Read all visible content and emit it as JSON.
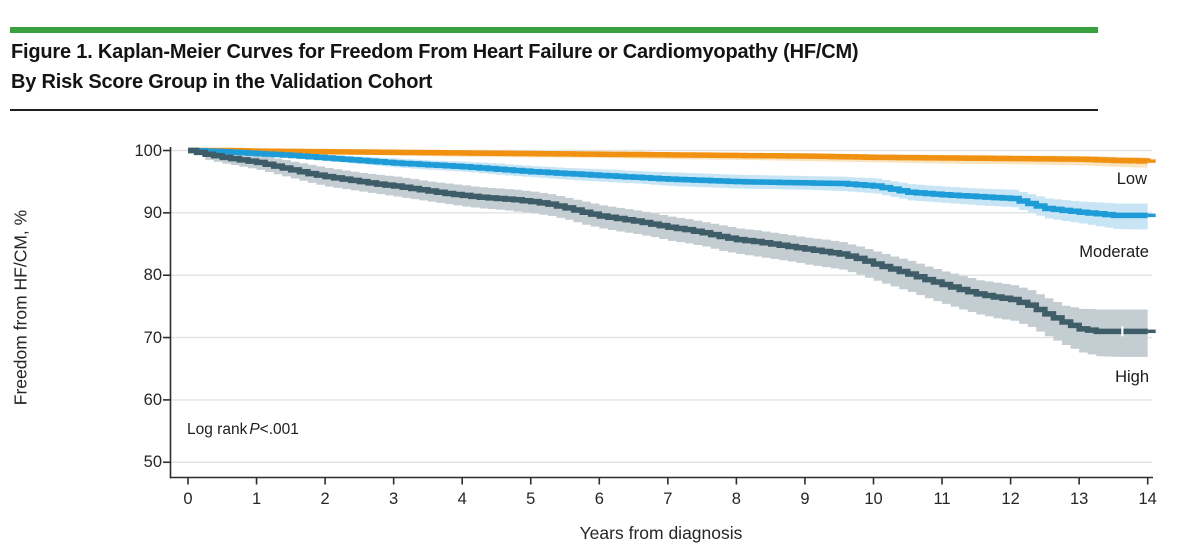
{
  "figure": {
    "title_line1": "Figure 1. Kaplan-Meier Curves for Freedom From Heart Failure or Cardiomyopathy (HF/CM)",
    "title_line2": "By Risk Score Group in the Validation Cohort",
    "accent_bar_color": "#38A03C"
  },
  "chart_data": {
    "type": "line",
    "subtype": "kaplan-meier-step",
    "xlabel": "Years from diagnosis",
    "ylabel": "Freedom from HF/CM, %",
    "xlim": [
      0,
      14
    ],
    "ylim": [
      50,
      100
    ],
    "xticks": [
      0,
      1,
      2,
      3,
      4,
      5,
      6,
      7,
      8,
      9,
      10,
      11,
      12,
      13,
      14
    ],
    "yticks": [
      50,
      60,
      70,
      80,
      90,
      100
    ],
    "grid": true,
    "gridline_color": "#e3e3e3",
    "axis_color": "#2d2d2d",
    "annotation": {
      "prefix": "Log rank",
      "p": "P",
      "suffix": "<.001"
    },
    "legend_position": "right-of-curves",
    "series": [
      {
        "name": "Low",
        "color": "#F19111",
        "ci_color": "#FAE4BE",
        "x": [
          0,
          0.5,
          1,
          1.5,
          2,
          2.5,
          3,
          3.5,
          4,
          4.5,
          5,
          5.5,
          6,
          6.5,
          7,
          7.5,
          8,
          8.5,
          9,
          9.5,
          10,
          10.5,
          11,
          11.5,
          12,
          12.5,
          13,
          13.5,
          14
        ],
        "y": [
          100,
          100,
          99.9,
          99.85,
          99.8,
          99.75,
          99.7,
          99.65,
          99.6,
          99.55,
          99.5,
          99.45,
          99.4,
          99.35,
          99.3,
          99.25,
          99.2,
          99.15,
          99.1,
          99.0,
          98.9,
          98.85,
          98.8,
          98.75,
          98.7,
          98.65,
          98.6,
          98.4,
          98.3
        ],
        "hi": [
          100,
          100,
          100,
          100,
          100,
          100,
          100,
          100,
          100,
          100,
          99.9,
          99.9,
          99.8,
          99.8,
          99.7,
          99.7,
          99.6,
          99.6,
          99.5,
          99.5,
          99.4,
          99.35,
          99.3,
          99.3,
          99.2,
          99.2,
          99.1,
          99.0,
          98.9
        ],
        "lo": [
          100,
          99.8,
          99.6,
          99.5,
          99.4,
          99.3,
          99.2,
          99.1,
          99.0,
          98.95,
          98.9,
          98.85,
          98.8,
          98.7,
          98.6,
          98.55,
          98.5,
          98.4,
          98.3,
          98.2,
          98.1,
          98.0,
          97.9,
          97.85,
          97.8,
          97.7,
          97.6,
          97.4,
          97.2
        ]
      },
      {
        "name": "Moderate",
        "color": "#1E9CD8",
        "ci_color": "#C8E5F5",
        "x": [
          0,
          0.5,
          1,
          1.5,
          2,
          2.5,
          3,
          3.5,
          4,
          4.5,
          5,
          5.5,
          6,
          6.5,
          7,
          7.5,
          8,
          8.5,
          9,
          9.5,
          10,
          10.5,
          11,
          11.5,
          12,
          12.5,
          13,
          13.5,
          14
        ],
        "y": [
          100,
          99.8,
          99.5,
          99.2,
          98.8,
          98.4,
          98.0,
          97.7,
          97.4,
          97.0,
          96.6,
          96.3,
          96.0,
          95.7,
          95.4,
          95.2,
          95.0,
          94.9,
          94.8,
          94.7,
          94.3,
          93.3,
          92.9,
          92.6,
          92.3,
          90.7,
          90.1,
          89.6,
          89.6
        ],
        "hi": [
          100,
          100,
          99.8,
          99.6,
          99.3,
          99.0,
          98.7,
          98.4,
          98.2,
          97.9,
          97.5,
          97.2,
          97.0,
          96.7,
          96.5,
          96.3,
          96.1,
          96.0,
          95.9,
          95.8,
          95.5,
          94.6,
          94.2,
          93.9,
          93.7,
          92.3,
          91.8,
          91.5,
          91.5
        ],
        "lo": [
          100,
          99.5,
          99.2,
          98.8,
          98.3,
          97.8,
          97.3,
          96.9,
          96.6,
          96.1,
          95.7,
          95.3,
          95.0,
          94.7,
          94.3,
          94.1,
          93.9,
          93.8,
          93.7,
          93.5,
          93.1,
          92.0,
          91.6,
          91.2,
          90.9,
          89.1,
          88.3,
          87.4,
          87.3
        ]
      },
      {
        "name": "High",
        "color": "#3F5D68",
        "ci_color": "#C4CDD2",
        "censor_tick_x": 13.63,
        "x": [
          0,
          0.25,
          0.5,
          0.75,
          1,
          1.25,
          1.5,
          1.75,
          2,
          2.25,
          2.5,
          2.75,
          3,
          3.25,
          3.5,
          3.75,
          4,
          4.25,
          4.5,
          4.75,
          5,
          5.25,
          5.5,
          5.75,
          6,
          6.25,
          6.5,
          6.75,
          7,
          7.25,
          7.5,
          7.75,
          8,
          8.25,
          8.5,
          8.75,
          9,
          9.25,
          9.5,
          9.75,
          10,
          10.25,
          10.5,
          10.75,
          11,
          11.25,
          11.5,
          11.75,
          12,
          12.25,
          12.5,
          12.75,
          13,
          13.25,
          13.5,
          13.75,
          14
        ],
        "y": [
          100,
          99.4,
          98.9,
          98.5,
          98.1,
          97.5,
          96.9,
          96.3,
          95.8,
          95.4,
          95.0,
          94.6,
          94.3,
          93.9,
          93.5,
          93.1,
          92.8,
          92.5,
          92.3,
          92.1,
          91.8,
          91.4,
          90.8,
          90.1,
          89.5,
          89.1,
          88.7,
          88.2,
          87.7,
          87.3,
          86.8,
          86.2,
          85.7,
          85.4,
          85.0,
          84.6,
          84.2,
          83.8,
          83.4,
          82.7,
          81.8,
          81.0,
          80.2,
          79.3,
          78.5,
          77.7,
          77.0,
          76.5,
          76.1,
          75.2,
          73.8,
          72.5,
          71.4,
          71.0,
          71.0,
          71.0,
          71.0
        ],
        "hi": [
          100,
          100,
          99.8,
          99.5,
          99.2,
          98.7,
          98.2,
          97.7,
          97.2,
          96.8,
          96.4,
          96.1,
          95.8,
          95.4,
          95.0,
          94.7,
          94.4,
          94.1,
          93.9,
          93.7,
          93.4,
          93.0,
          92.4,
          91.8,
          91.2,
          90.8,
          90.4,
          89.9,
          89.4,
          89.0,
          88.5,
          88.0,
          87.5,
          87.2,
          86.8,
          86.4,
          86.0,
          85.7,
          85.3,
          84.6,
          83.8,
          83.0,
          82.3,
          81.4,
          80.6,
          79.9,
          79.2,
          78.8,
          78.4,
          77.6,
          76.3,
          75.1,
          74.6,
          74.5,
          74.5,
          74.5,
          74.5
        ],
        "lo": [
          100,
          98.5,
          97.9,
          97.4,
          96.9,
          96.2,
          95.5,
          94.8,
          94.2,
          93.8,
          93.4,
          93.0,
          92.6,
          92.2,
          91.8,
          91.4,
          91.0,
          90.7,
          90.5,
          90.2,
          89.9,
          89.5,
          88.9,
          88.1,
          87.5,
          87.0,
          86.6,
          86.1,
          85.5,
          85.1,
          84.6,
          83.9,
          83.4,
          83.0,
          82.6,
          82.2,
          81.7,
          81.3,
          80.9,
          80.1,
          79.1,
          78.2,
          77.3,
          76.3,
          75.4,
          74.5,
          73.7,
          73.1,
          72.7,
          71.7,
          70.2,
          68.8,
          67.6,
          67.0,
          66.9,
          66.9,
          66.9
        ]
      }
    ]
  }
}
